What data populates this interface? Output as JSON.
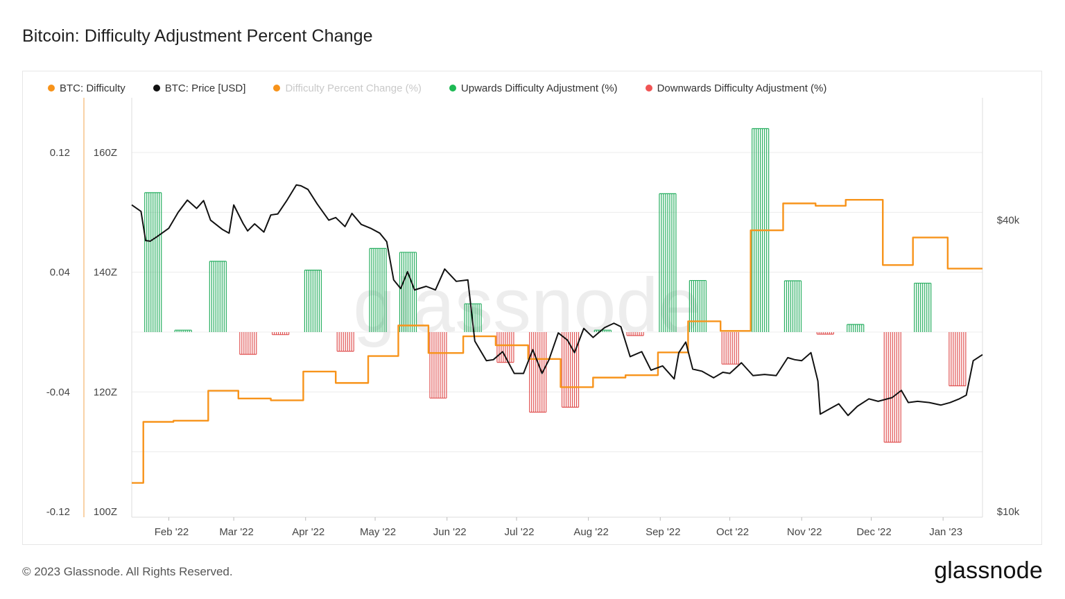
{
  "title": "Bitcoin: Difficulty Adjustment Percent Change",
  "footer": {
    "copyright": "© 2023 Glassnode. All Rights Reserved.",
    "logo": "glassnode"
  },
  "watermark": "glassnode",
  "legend": [
    {
      "label": "BTC: Difficulty",
      "color": "#f7931a",
      "muted": false
    },
    {
      "label": "BTC: Price [USD]",
      "color": "#111111",
      "muted": false
    },
    {
      "label": "Difficulty Percent Change (%)",
      "color": "#f7931a",
      "muted": true
    },
    {
      "label": "Upwards Difficulty Adjustment (%)",
      "color": "#1db954",
      "muted": false
    },
    {
      "label": "Downwards Difficulty Adjustment (%)",
      "color": "#f05454",
      "muted": false
    }
  ],
  "chart_data": {
    "type": "line",
    "colors": {
      "difficulty": "#f7931a",
      "price": "#111111",
      "up": "#27ae60",
      "down": "#e05252",
      "grid": "#ececec"
    },
    "x_axis": {
      "start": "2022-01-16",
      "end": "2023-01-18",
      "ticks": [
        {
          "label": "Feb '22",
          "date": "2022-02-01"
        },
        {
          "label": "Mar '22",
          "date": "2022-03-01"
        },
        {
          "label": "Apr '22",
          "date": "2022-04-01"
        },
        {
          "label": "May '22",
          "date": "2022-05-01"
        },
        {
          "label": "Jun '22",
          "date": "2022-06-01"
        },
        {
          "label": "Jul '22",
          "date": "2022-07-01"
        },
        {
          "label": "Aug '22",
          "date": "2022-08-01"
        },
        {
          "label": "Sep '22",
          "date": "2022-09-01"
        },
        {
          "label": "Oct '22",
          "date": "2022-10-01"
        },
        {
          "label": "Nov '22",
          "date": "2022-11-01"
        },
        {
          "label": "Dec '22",
          "date": "2022-12-01"
        },
        {
          "label": "Jan '23",
          "date": "2023-01-01"
        }
      ]
    },
    "percent_axis": {
      "ylim": [
        -0.12,
        0.12
      ],
      "ticks": [
        "0.12",
        "0.04",
        "-0.04",
        "-0.12"
      ],
      "tick_values": [
        0.12,
        0.04,
        -0.04,
        -0.12
      ]
    },
    "difficulty_axis": {
      "ylim": [
        100,
        160
      ],
      "ticks": [
        "160Z",
        "140Z",
        "120Z",
        "100Z"
      ],
      "tick_values": [
        160,
        140,
        120,
        100
      ]
    },
    "price_axis": {
      "scale": "log",
      "ylim": [
        10000,
        49000
      ],
      "ticks": [
        "$40k",
        "$10k"
      ],
      "tick_values": [
        40000,
        10000
      ]
    },
    "difficulty_series": {
      "name": "BTC: Difficulty",
      "dates": [
        "2022-01-16",
        "2022-01-21",
        "2022-02-03",
        "2022-02-18",
        "2022-03-03",
        "2022-03-17",
        "2022-03-31",
        "2022-04-14",
        "2022-04-28",
        "2022-05-11",
        "2022-05-24",
        "2022-06-08",
        "2022-06-22",
        "2022-07-06",
        "2022-07-20",
        "2022-08-03",
        "2022-08-17",
        "2022-08-31",
        "2022-09-13",
        "2022-09-27",
        "2022-10-10",
        "2022-10-24",
        "2022-11-07",
        "2022-11-20",
        "2022-12-06",
        "2022-12-19",
        "2023-01-03",
        "2023-01-18"
      ],
      "values": [
        104.8,
        115.0,
        115.2,
        120.2,
        118.9,
        118.6,
        123.4,
        121.5,
        126.0,
        131.1,
        126.5,
        129.3,
        127.8,
        125.5,
        120.8,
        122.4,
        122.8,
        126.6,
        131.8,
        130.2,
        147.0,
        151.5,
        151.1,
        152.1,
        141.2,
        145.8,
        140.6,
        140.6
      ]
    },
    "price_series": {
      "name": "BTC: Price [USD]",
      "dates": [
        "2022-01-16",
        "2022-01-20",
        "2022-01-22",
        "2022-01-24",
        "2022-01-27",
        "2022-02-01",
        "2022-02-05",
        "2022-02-09",
        "2022-02-13",
        "2022-02-16",
        "2022-02-19",
        "2022-02-24",
        "2022-02-27",
        "2022-03-01",
        "2022-03-05",
        "2022-03-07",
        "2022-03-10",
        "2022-03-14",
        "2022-03-17",
        "2022-03-20",
        "2022-03-24",
        "2022-03-28",
        "2022-03-30",
        "2022-04-02",
        "2022-04-06",
        "2022-04-11",
        "2022-04-14",
        "2022-04-18",
        "2022-04-21",
        "2022-04-25",
        "2022-04-29",
        "2022-05-03",
        "2022-05-06",
        "2022-05-09",
        "2022-05-12",
        "2022-05-15",
        "2022-05-18",
        "2022-05-23",
        "2022-05-27",
        "2022-05-31",
        "2022-06-05",
        "2022-06-10",
        "2022-06-13",
        "2022-06-18",
        "2022-06-21",
        "2022-06-25",
        "2022-06-30",
        "2022-07-04",
        "2022-07-08",
        "2022-07-12",
        "2022-07-15",
        "2022-07-19",
        "2022-07-23",
        "2022-07-26",
        "2022-07-30",
        "2022-08-03",
        "2022-08-08",
        "2022-08-12",
        "2022-08-15",
        "2022-08-19",
        "2022-08-24",
        "2022-08-28",
        "2022-09-02",
        "2022-09-07",
        "2022-09-09",
        "2022-09-12",
        "2022-09-15",
        "2022-09-19",
        "2022-09-24",
        "2022-09-28",
        "2022-10-01",
        "2022-10-06",
        "2022-10-11",
        "2022-10-16",
        "2022-10-21",
        "2022-10-26",
        "2022-10-29",
        "2022-11-01",
        "2022-11-05",
        "2022-11-08",
        "2022-11-09",
        "2022-11-13",
        "2022-11-17",
        "2022-11-21",
        "2022-11-25",
        "2022-11-30",
        "2022-12-04",
        "2022-12-10",
        "2022-12-14",
        "2022-12-17",
        "2022-12-21",
        "2022-12-26",
        "2022-12-31",
        "2023-01-04",
        "2023-01-08",
        "2023-01-11",
        "2023-01-14",
        "2023-01-18"
      ],
      "values": [
        43000,
        41700,
        36300,
        36200,
        37000,
        38500,
        41500,
        44000,
        42300,
        43900,
        40000,
        38300,
        37600,
        43000,
        39400,
        38000,
        39300,
        37800,
        41000,
        41200,
        44000,
        47300,
        47100,
        46300,
        43200,
        40000,
        40500,
        38800,
        41300,
        39200,
        38500,
        37600,
        36100,
        30100,
        28900,
        31300,
        28700,
        29200,
        28700,
        31700,
        29900,
        30100,
        22500,
        20500,
        20600,
        21400,
        19300,
        19300,
        21600,
        19300,
        20600,
        23400,
        22600,
        21300,
        23900,
        22900,
        24000,
        24500,
        24100,
        20900,
        21400,
        19600,
        20000,
        18800,
        21300,
        22400,
        19700,
        19500,
        18900,
        19400,
        19300,
        20300,
        19100,
        19200,
        19100,
        20800,
        20600,
        20500,
        21300,
        18600,
        15900,
        16300,
        16700,
        15800,
        16500,
        17100,
        16900,
        17200,
        17800,
        16800,
        16900,
        16800,
        16600,
        16800,
        17100,
        17400,
        20500,
        21100
      ]
    },
    "adjustments": {
      "name": "Difficulty Percent Change (%)",
      "dates": [
        "2022-01-21",
        "2022-02-03",
        "2022-02-18",
        "2022-03-03",
        "2022-03-17",
        "2022-03-31",
        "2022-04-14",
        "2022-04-28",
        "2022-05-11",
        "2022-05-24",
        "2022-06-08",
        "2022-06-22",
        "2022-07-06",
        "2022-07-20",
        "2022-08-03",
        "2022-08-17",
        "2022-08-31",
        "2022-09-13",
        "2022-09-27",
        "2022-10-10",
        "2022-10-24",
        "2022-11-07",
        "2022-11-20",
        "2022-12-06",
        "2022-12-19",
        "2023-01-03"
      ],
      "values": [
        0.0932,
        0.0013,
        0.0473,
        -0.0149,
        -0.0017,
        0.0414,
        -0.0128,
        0.0559,
        0.0533,
        -0.0441,
        0.0189,
        -0.0202,
        -0.0535,
        -0.0502,
        0.0013,
        -0.0023,
        0.0925,
        0.0345,
        -0.0214,
        0.136,
        0.0343,
        -0.0014,
        0.0051,
        -0.0736,
        0.0327,
        -0.0359
      ]
    }
  }
}
